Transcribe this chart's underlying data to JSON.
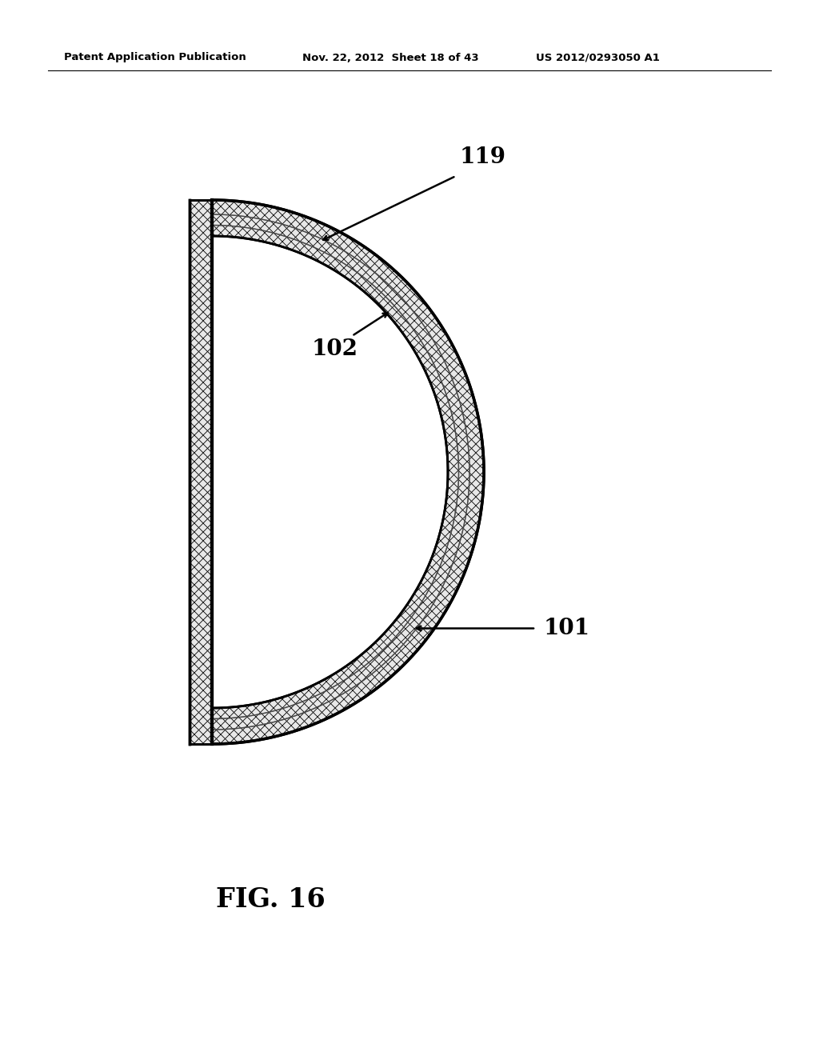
{
  "title": "FIG. 16",
  "header_left": "Patent Application Publication",
  "header_center": "Nov. 22, 2012  Sheet 18 of 43",
  "header_right": "US 2012/0293050 A1",
  "bg_color": "#ffffff",
  "fig_width": 10.24,
  "fig_height": 13.2,
  "fig_dpi": 100,
  "label_101": "101",
  "label_102": "102",
  "label_119": "119",
  "header_fontsize": 9.5,
  "label_fontsize": 20,
  "title_fontsize": 24
}
